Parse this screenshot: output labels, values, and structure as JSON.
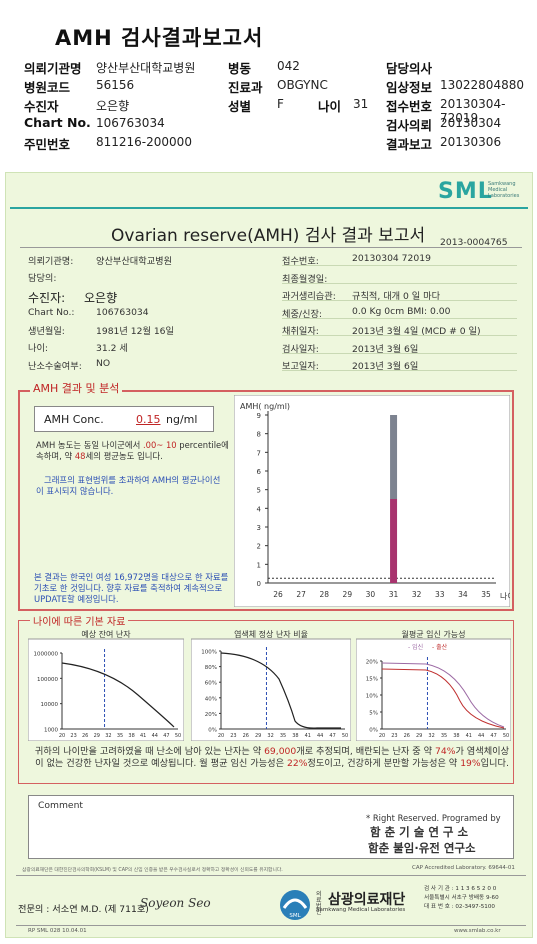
{
  "header": {
    "title": "AMH 검사결과보고서",
    "rows": [
      [
        {
          "label": "의뢰기관명",
          "value": "양산부산대학교병원"
        },
        {
          "label": "병동",
          "value": "042"
        },
        {
          "label": "담당의사",
          "value": ""
        }
      ],
      [
        {
          "label": "병원코드",
          "value": "56156"
        },
        {
          "label": "진료과",
          "value": "OBGYNC"
        },
        {
          "label": "임상정보",
          "value": "13022804880"
        }
      ],
      [
        {
          "label": "수진자",
          "value": "오은향"
        },
        {
          "label": "성별",
          "value": "F"
        },
        {
          "label": "접수번호",
          "value": "20130304-72019"
        }
      ],
      [
        {
          "label": "Chart No.",
          "value": "106763034"
        },
        {
          "label": "",
          "value": ""
        },
        {
          "label": "검사의뢰",
          "value": "20130304"
        }
      ],
      [
        {
          "label": "주민번호",
          "value": "811216-200000"
        },
        {
          "label": "",
          "value": ""
        },
        {
          "label": "결과보고",
          "value": "20130306"
        }
      ]
    ],
    "age_label": "나이",
    "age_value": "31"
  },
  "doc": {
    "logo": "SML",
    "logo_sub1": "Samkwang",
    "logo_sub2": "Medical",
    "logo_sub3": "Laboratories",
    "title": "Ovarian reserve(AMH) 검사 결과 보고서",
    "doc_no": "2013-0004765",
    "left_info": [
      {
        "label": "의뢰기관명:",
        "value": "양산부산대학교병원"
      },
      {
        "label": "담당의:",
        "value": ""
      },
      {
        "label": "수진자:",
        "value": "오은향"
      },
      {
        "label": "Chart No.:",
        "value": "106763034"
      },
      {
        "label": "생년월일:",
        "value": "1981년 12월 16일"
      },
      {
        "label": "나이:",
        "value": "31.2 세"
      },
      {
        "label": "난소수술여부:",
        "value": "NO"
      }
    ],
    "right_info": [
      {
        "label": "접수번호:",
        "value": "20130304 72019"
      },
      {
        "label": "최종월경일:",
        "value": ""
      },
      {
        "label": "과거생리습관:",
        "value": "규칙적, 대개    0 일 마다"
      },
      {
        "label": "체중/신장:",
        "value": "0.0 Kg        0cm    BMI:   0.00"
      },
      {
        "label": "채취일자:",
        "value": "2013년 3월 4일   (MCD #  0 일)"
      },
      {
        "label": "검사일자:",
        "value": "2013년 3월 6일"
      },
      {
        "label": "보고일자:",
        "value": "2013년 3월 6일"
      }
    ],
    "amh_section": "AMH 결과 및 분석",
    "amh_conc_label": "AMH Conc.",
    "amh_conc_value": "0.15",
    "amh_conc_unit": "ng/ml",
    "amh_text1_a": "AMH 농도는 동일 나이군에서",
    "amh_text1_b": ".00~ 10",
    "amh_text1_c": "percentile에 속하며, 약",
    "amh_text1_d": "48",
    "amh_text1_e": "세의 평균농도",
    "amh_text1_f": "입니다.",
    "amh_text2": "그래프의 표현범위를 초과하여 AMH의 평균나이선이 표시되지 않습니다.",
    "amh_note": "본 결과는 한국인 여성 16,972명을 대상으로 한 자료를 기초로 한 것입니다. 향후 자료를 축적하여 계속적으로 UPDATE할 예정입니다.",
    "basic_section": "나이에 따른 기본 자료",
    "chart_titles": [
      "예상 잔여 난자",
      "염색체 정상 난자 비율",
      "월평균 임신 가능성"
    ],
    "chart3_legend_a": "- 임신",
    "chart3_legend_b": "- 출산",
    "summary_a": "귀하의 나이만을 고려하였을 때 난소에 남아 있는 난자는 약",
    "summary_b": "69,000",
    "summary_c": "개로 추정되며, 배란되는 난자 중 약",
    "summary_d": "74%",
    "summary_e": "가 염색체이상이 없는 건강한 난자일 것으로 예상됩니다. 월 평균 임신 가능성은",
    "summary_f": "22%",
    "summary_g": "정도이고, 건강하게 분만할 가능성은 약",
    "summary_h": "19%",
    "summary_i": "입니다.",
    "comment_label": "Comment",
    "rights": "* Right Reserved. Programed by",
    "inst1": "함 춘  기 술  연 구 소",
    "inst2": "함춘 불임·유전 연구소",
    "footer_line": "삼광의료재단은 대한진단검사의학회(KSLM) 및 CAP의 신임 인증을 받은 우수검사실로서 정확하고 정확성이 신뢰도를 유지합니다.",
    "cap": "CAP Accredited Laboratory. 69644-01",
    "signer": "전문의 : 서소연 M.D. (제 711호)",
    "signature": "Soyeon Seo",
    "foundation_tag": "의료법인",
    "foundation": "삼광의료재단",
    "foundation_en": "Samkwang Medical Laboratories",
    "addr1": "검 사 기 관 : 1 1 3 6 5 2 0 0",
    "addr2": "서울특별시 서초구 방배동 9-60",
    "addr3": "대 표 번 호 : 02-3497-5100",
    "form_no": "RP SML 028 10.04.01",
    "website": "www.smlab.co.kr"
  },
  "chart_data": [
    {
      "type": "bar",
      "title": "",
      "ylabel": "AMH( ng/ml)",
      "xlabel": "나이",
      "categories": [
        26,
        27,
        28,
        29,
        30,
        31,
        32,
        33,
        34,
        35
      ],
      "ylim": [
        0,
        9
      ],
      "yticks": [
        0,
        1,
        2,
        3,
        4,
        5,
        6,
        7,
        8,
        9
      ],
      "bars": [
        {
          "x": 31,
          "low": 0,
          "high": 4.5,
          "color": "#a8336e"
        },
        {
          "x": 31,
          "low": 4.5,
          "high": 9,
          "color": "#7d8390"
        }
      ],
      "measured": 0.15,
      "colors": {
        "upper": "#7d8390",
        "lower": "#a8336e"
      }
    },
    {
      "type": "line",
      "title": "예상 잔여 난자",
      "log_y": true,
      "y_ticks": [
        "1000000",
        "100000",
        "10000",
        "1000"
      ],
      "x_ticks": [
        20,
        23,
        26,
        29,
        32,
        35,
        38,
        41,
        44,
        47,
        50
      ],
      "marker_x": 31
    },
    {
      "type": "line",
      "title": "염색체 정상 난자 비율",
      "y_ticks": [
        "100%",
        "80%",
        "60%",
        "40%",
        "20%",
        "0%"
      ],
      "x_ticks": [
        20,
        23,
        26,
        29,
        32,
        35,
        38,
        41,
        44,
        47,
        50
      ],
      "marker_x": 31
    },
    {
      "type": "line",
      "title": "월평균 임신 가능성",
      "y_ticks": [
        "20%",
        "15%",
        "10%",
        "5%",
        "0%"
      ],
      "x_ticks": [
        20,
        23,
        26,
        29,
        32,
        35,
        38,
        41,
        44,
        47,
        50
      ],
      "series": [
        {
          "name": "임신",
          "color": "#9c6aa4"
        },
        {
          "name": "출산",
          "color": "#c03030"
        }
      ],
      "marker_x": 31
    }
  ]
}
